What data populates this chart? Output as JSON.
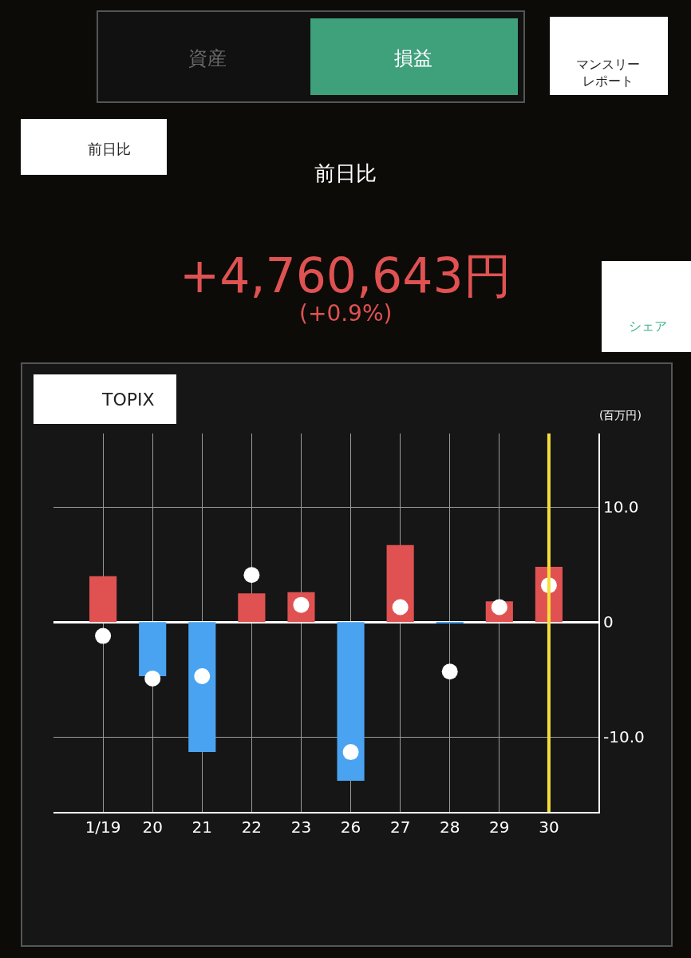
{
  "chart_data": {
    "type": "bar",
    "title": "前日比",
    "subtitle": "+4,760,643円",
    "ylabel": "(百万円)",
    "annotations": [
      "資産",
      "損益",
      "マンスリー",
      "レポート",
      "前日比",
      "(+0.9%)",
      "シェア",
      "TOPIX"
    ],
    "categories": [
      "1/19",
      "20",
      "21",
      "22",
      "23",
      "26",
      "27",
      "28",
      "29",
      "30"
    ],
    "series": [
      {
        "colors": [
          "#e05252",
          "#4aa3f0",
          "#4aa3f0",
          "#e05252",
          "#e05252",
          "#4aa3f0",
          "#e05252",
          "#4aa3f0",
          "#e05252",
          "#e05252"
        ],
        "values": [
          4.0,
          -4.7,
          -11.3,
          2.5,
          2.6,
          -13.8,
          6.7,
          -0.1,
          1.8,
          4.8
        ]
      },
      {
        "type": "scatter",
        "color": "#ffffff",
        "marker": "circle",
        "values": [
          -1.2,
          -4.9,
          -4.7,
          4.1,
          1.5,
          -11.3,
          1.3,
          -4.3,
          1.3,
          3.2
        ]
      }
    ],
    "ylim": [
      -16.5,
      16.4
    ],
    "yticks": [
      {
        "value": 10,
        "label": "10.0"
      },
      0,
      {
        "value": -10,
        "label": "-10.0"
      }
    ],
    "ref_lines": [
      {
        "axis": "x",
        "value": "30",
        "color": "#f5e03a"
      }
    ],
    "grid": true
  }
}
